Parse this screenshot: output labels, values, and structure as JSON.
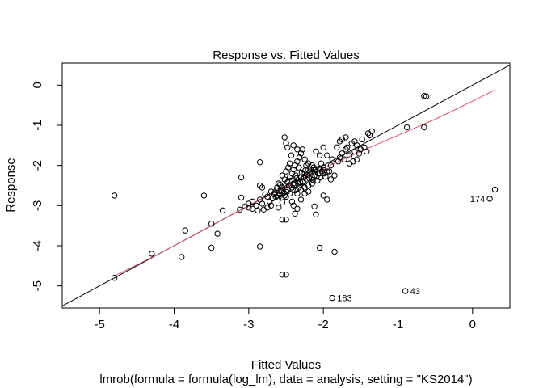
{
  "chart_data": {
    "type": "scatter",
    "title": "Response vs. Fitted Values",
    "xlabel": "Fitted Values",
    "ylabel": "Response",
    "subtitle": "lmrob(formula = formula(log_lm), data = analysis, setting = \"KS2014\")",
    "xlim": [
      -5.5,
      0.5
    ],
    "ylim": [
      -5.55,
      0.55
    ],
    "x_ticks": [
      -5,
      -4,
      -3,
      -2,
      -1,
      0
    ],
    "y_ticks": [
      -5,
      -4,
      -3,
      -2,
      -1,
      0
    ],
    "x_tick_labels": [
      "-5",
      "-4",
      "-3",
      "-2",
      "-1",
      "0"
    ],
    "y_tick_labels": [
      "-5",
      "-4",
      "-3",
      "-2",
      "-1",
      "0"
    ],
    "grid": false,
    "point_color": "#000000",
    "identity_line": {
      "slope": 1,
      "intercept": 0,
      "color": "#000000"
    },
    "smooth_color": "#DF536B",
    "smooth": [
      [
        -4.8,
        -4.75
      ],
      [
        -4.2,
        -4.2
      ],
      [
        -3.6,
        -3.6
      ],
      [
        -3.0,
        -3.0
      ],
      [
        -2.6,
        -2.62
      ],
      [
        -2.2,
        -2.25
      ],
      [
        -1.8,
        -1.9
      ],
      [
        -1.4,
        -1.57
      ],
      [
        -1.0,
        -1.25
      ],
      [
        -0.5,
        -0.85
      ],
      [
        0.0,
        -0.4
      ],
      [
        0.3,
        -0.12
      ]
    ],
    "labeled_points": [
      {
        "x": 0.23,
        "y": -2.83,
        "label": "174"
      },
      {
        "x": -0.9,
        "y": -5.13,
        "label": "43"
      },
      {
        "x": -1.88,
        "y": -5.3,
        "label": "183"
      }
    ],
    "points": [
      [
        -4.8,
        -2.75
      ],
      [
        -4.8,
        -4.8
      ],
      [
        -4.3,
        -4.2
      ],
      [
        -3.9,
        -4.28
      ],
      [
        -3.85,
        -3.62
      ],
      [
        -3.6,
        -2.75
      ],
      [
        -3.5,
        -3.45
      ],
      [
        -3.5,
        -4.05
      ],
      [
        -3.42,
        -3.7
      ],
      [
        -3.35,
        -3.12
      ],
      [
        -3.1,
        -2.3
      ],
      [
        -3.1,
        -2.8
      ],
      [
        -3.12,
        -3.1
      ],
      [
        -3.05,
        -3.02
      ],
      [
        -3.0,
        -3.05
      ],
      [
        -2.95,
        -2.9
      ],
      [
        -2.9,
        -3.0
      ],
      [
        -2.85,
        -2.85
      ],
      [
        -2.82,
        -2.95
      ],
      [
        -2.8,
        -3.1
      ],
      [
        -2.78,
        -2.72
      ],
      [
        -2.75,
        -2.78
      ],
      [
        -2.75,
        -3.05
      ],
      [
        -2.72,
        -2.9
      ],
      [
        -2.7,
        -3.0
      ],
      [
        -2.68,
        -2.82
      ],
      [
        -2.88,
        -3.12
      ],
      [
        -2.85,
        -1.92
      ],
      [
        -2.85,
        -2.5
      ],
      [
        -2.82,
        -2.55
      ],
      [
        -2.85,
        -4.02
      ],
      [
        -2.6,
        -2.8
      ],
      [
        -2.58,
        -2.72
      ],
      [
        -2.55,
        -2.65
      ],
      [
        -2.52,
        -2.75
      ],
      [
        -2.5,
        -2.78
      ],
      [
        -2.48,
        -2.6
      ],
      [
        -2.5,
        -2.5
      ],
      [
        -2.55,
        -2.55
      ],
      [
        -2.6,
        -2.45
      ],
      [
        -2.45,
        -2.7
      ],
      [
        -2.42,
        -2.55
      ],
      [
        -2.4,
        -2.45
      ],
      [
        -2.38,
        -2.62
      ],
      [
        -2.35,
        -2.4
      ],
      [
        -2.32,
        -2.5
      ],
      [
        -2.3,
        -2.3
      ],
      [
        -2.28,
        -2.42
      ],
      [
        -2.25,
        -2.2
      ],
      [
        -2.22,
        -2.35
      ],
      [
        -2.2,
        -2.5
      ],
      [
        -2.18,
        -2.15
      ],
      [
        -2.15,
        -2.3
      ],
      [
        -2.12,
        -2.25
      ],
      [
        -2.1,
        -2.1
      ],
      [
        -2.08,
        -2.38
      ],
      [
        -2.05,
        -2.2
      ],
      [
        -2.02,
        -2.15
      ],
      [
        -2.0,
        -2.05
      ],
      [
        -1.98,
        -2.2
      ],
      [
        -1.95,
        -2.15
      ],
      [
        -2.45,
        -2.3
      ],
      [
        -2.42,
        -2.2
      ],
      [
        -2.4,
        -2.1
      ],
      [
        -2.38,
        -2.0
      ],
      [
        -2.35,
        -1.9
      ],
      [
        -2.32,
        -1.8
      ],
      [
        -2.3,
        -1.7
      ],
      [
        -2.28,
        -1.6
      ],
      [
        -2.25,
        -1.85
      ],
      [
        -2.2,
        -1.95
      ],
      [
        -2.15,
        -2.0
      ],
      [
        -2.45,
        -1.95
      ],
      [
        -2.48,
        -1.55
      ],
      [
        -2.5,
        -1.45
      ],
      [
        -2.52,
        -1.3
      ],
      [
        -2.4,
        -1.5
      ],
      [
        -2.35,
        -1.6
      ],
      [
        -2.5,
        -2.15
      ],
      [
        -2.52,
        -2.35
      ],
      [
        -2.55,
        -2.25
      ],
      [
        -2.47,
        -2.05
      ],
      [
        -2.43,
        -1.75
      ],
      [
        -2.37,
        -2.25
      ],
      [
        -2.33,
        -2.05
      ],
      [
        -2.27,
        -2.1
      ],
      [
        -2.23,
        -2.0
      ],
      [
        -2.17,
        -2.1
      ],
      [
        -2.13,
        -2.05
      ],
      [
        -2.07,
        -2.2
      ],
      [
        -2.03,
        -1.95
      ],
      [
        -1.92,
        -2.15
      ],
      [
        -1.9,
        -2.0
      ],
      [
        -2.3,
        -2.6
      ],
      [
        -2.25,
        -2.55
      ],
      [
        -2.2,
        -2.65
      ],
      [
        -2.15,
        -2.45
      ],
      [
        -2.35,
        -2.7
      ],
      [
        -2.42,
        -2.9
      ],
      [
        -2.55,
        -2.92
      ],
      [
        -2.6,
        -3.05
      ],
      [
        -2.4,
        -3.0
      ],
      [
        -2.3,
        -2.85
      ],
      [
        -2.25,
        -2.7
      ],
      [
        -2.5,
        -3.35
      ],
      [
        -2.55,
        -3.35
      ],
      [
        -2.55,
        -4.72
      ],
      [
        -2.5,
        -4.72
      ],
      [
        -2.05,
        -4.05
      ],
      [
        -1.85,
        -4.15
      ],
      [
        -2.12,
        -3.02
      ],
      [
        -2.1,
        -3.22
      ],
      [
        -2.0,
        -2.75
      ],
      [
        -1.95,
        -2.85
      ],
      [
        -2.35,
        -3.08
      ],
      [
        -2.38,
        -3.2
      ],
      [
        -1.85,
        -2.25
      ],
      [
        -1.9,
        -2.35
      ],
      [
        -1.8,
        -1.9
      ],
      [
        -1.78,
        -1.8
      ],
      [
        -1.75,
        -1.7
      ],
      [
        -1.72,
        -1.85
      ],
      [
        -1.7,
        -1.6
      ],
      [
        -1.68,
        -1.55
      ],
      [
        -1.65,
        -1.75
      ],
      [
        -1.62,
        -1.45
      ],
      [
        -1.6,
        -1.9
      ],
      [
        -1.58,
        -1.65
      ],
      [
        -1.55,
        -1.5
      ],
      [
        -1.52,
        -1.7
      ],
      [
        -1.5,
        -1.6
      ],
      [
        -1.48,
        -1.35
      ],
      [
        -1.45,
        -1.55
      ],
      [
        -1.42,
        -1.65
      ],
      [
        -1.38,
        -1.25
      ],
      [
        -1.35,
        -1.15
      ],
      [
        -1.4,
        -1.2
      ],
      [
        -1.78,
        -1.4
      ],
      [
        -1.82,
        -1.55
      ],
      [
        -1.75,
        -1.35
      ],
      [
        -1.95,
        -1.75
      ],
      [
        -2.0,
        -1.55
      ],
      [
        -2.05,
        -1.75
      ],
      [
        -2.1,
        -1.65
      ],
      [
        -1.88,
        -1.85
      ],
      [
        -1.7,
        -1.3
      ],
      [
        -1.65,
        -1.95
      ],
      [
        -1.58,
        -1.4
      ],
      [
        -1.55,
        -1.85
      ],
      [
        -0.88,
        -1.05
      ],
      [
        -0.65,
        -1.05
      ],
      [
        -0.65,
        -0.27
      ],
      [
        -0.62,
        -0.28
      ],
      [
        0.3,
        -2.6
      ],
      [
        0.23,
        -2.83
      ],
      [
        -0.9,
        -5.13
      ],
      [
        -1.88,
        -5.3
      ],
      [
        -3.0,
        -2.95
      ],
      [
        -2.95,
        -3.08
      ],
      [
        -2.65,
        -2.68
      ],
      [
        -2.62,
        -2.55
      ],
      [
        -2.58,
        -2.48
      ],
      [
        -2.57,
        -2.62
      ],
      [
        -2.53,
        -2.68
      ],
      [
        -2.48,
        -2.42
      ],
      [
        -2.46,
        -2.5
      ],
      [
        -2.44,
        -2.38
      ],
      [
        -2.39,
        -2.48
      ],
      [
        -2.36,
        -2.32
      ],
      [
        -2.34,
        -2.45
      ],
      [
        -2.31,
        -2.42
      ],
      [
        -2.29,
        -2.18
      ],
      [
        -2.26,
        -2.28
      ],
      [
        -2.24,
        -2.12
      ],
      [
        -2.21,
        -2.24
      ],
      [
        -2.19,
        -2.32
      ],
      [
        -2.16,
        -2.18
      ],
      [
        -2.14,
        -2.36
      ],
      [
        -2.11,
        -2.12
      ],
      [
        -2.09,
        -2.28
      ],
      [
        -2.06,
        -2.08
      ],
      [
        -2.04,
        -2.3
      ],
      [
        -1.99,
        -2.12
      ],
      [
        -1.97,
        -2.28
      ],
      [
        -2.41,
        -2.6
      ],
      [
        -2.33,
        -2.55
      ],
      [
        -2.27,
        -2.4
      ],
      [
        -2.49,
        -2.66
      ],
      [
        -2.56,
        -2.8
      ],
      [
        -2.61,
        -2.75
      ],
      [
        -2.63,
        -2.62
      ],
      [
        -2.64,
        -2.78
      ],
      [
        -2.66,
        -2.72
      ],
      [
        -2.7,
        -2.65
      ]
    ]
  }
}
